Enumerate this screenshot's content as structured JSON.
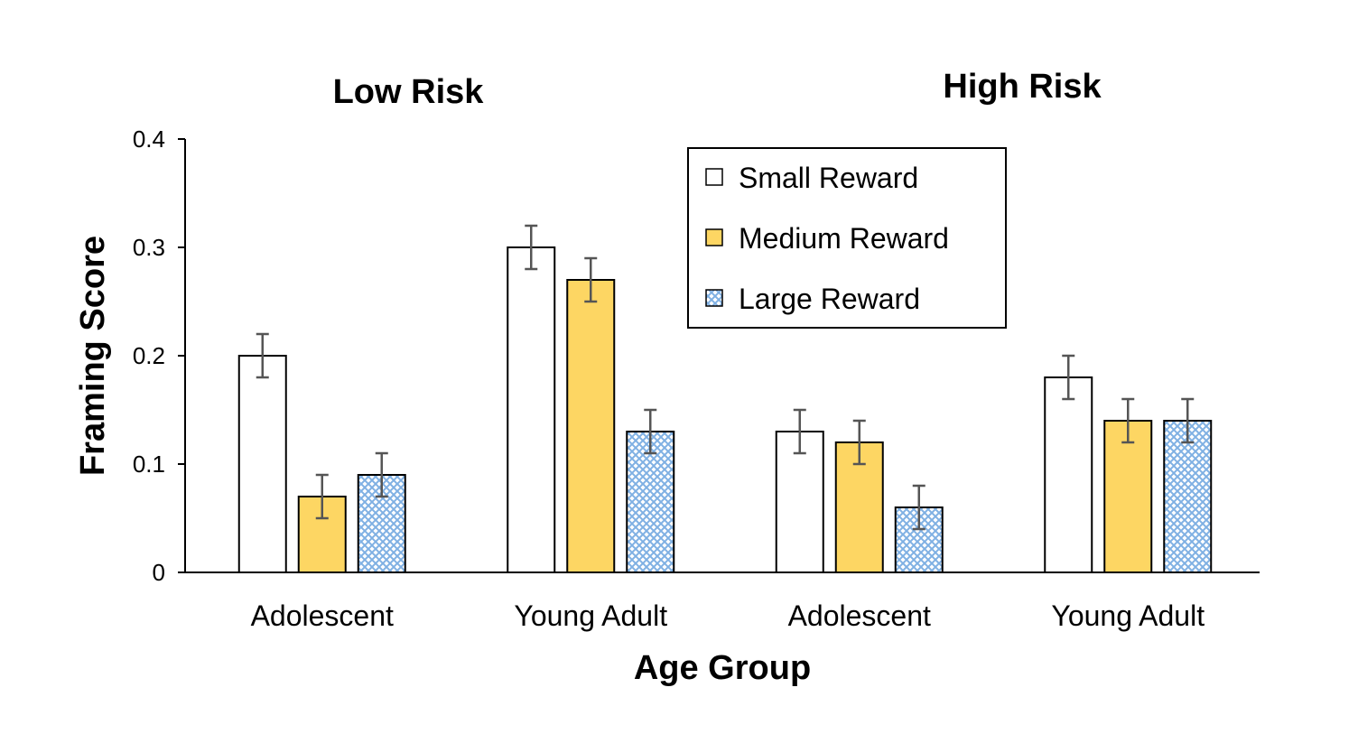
{
  "chart_data": {
    "type": "bar",
    "panels": [
      "Low Risk",
      "High Risk"
    ],
    "categories": [
      "Adolescent",
      "Young Adult",
      "Adolescent",
      "Young Adult"
    ],
    "series": [
      {
        "name": "Small Reward",
        "values": [
          0.2,
          0.3,
          0.13,
          0.18
        ],
        "errors": [
          0.02,
          0.02,
          0.02,
          0.02
        ],
        "color": "#ffffff",
        "pattern": "none"
      },
      {
        "name": "Medium Reward",
        "values": [
          0.07,
          0.27,
          0.12,
          0.14
        ],
        "errors": [
          0.02,
          0.02,
          0.02,
          0.02
        ],
        "color": "#fdd663",
        "pattern": "none"
      },
      {
        "name": "Large Reward",
        "values": [
          0.09,
          0.13,
          0.06,
          0.14
        ],
        "errors": [
          0.02,
          0.02,
          0.02,
          0.02
        ],
        "color": "#9cc3ec",
        "pattern": "crosshatch"
      }
    ],
    "xlabel": "Age Group",
    "ylabel": "Framing Score",
    "ylim": [
      0,
      0.4
    ],
    "yticks": [
      "0",
      "0.1",
      "0.2",
      "0.3",
      "0.4"
    ],
    "grid": false,
    "legend_placement": "top-right"
  }
}
